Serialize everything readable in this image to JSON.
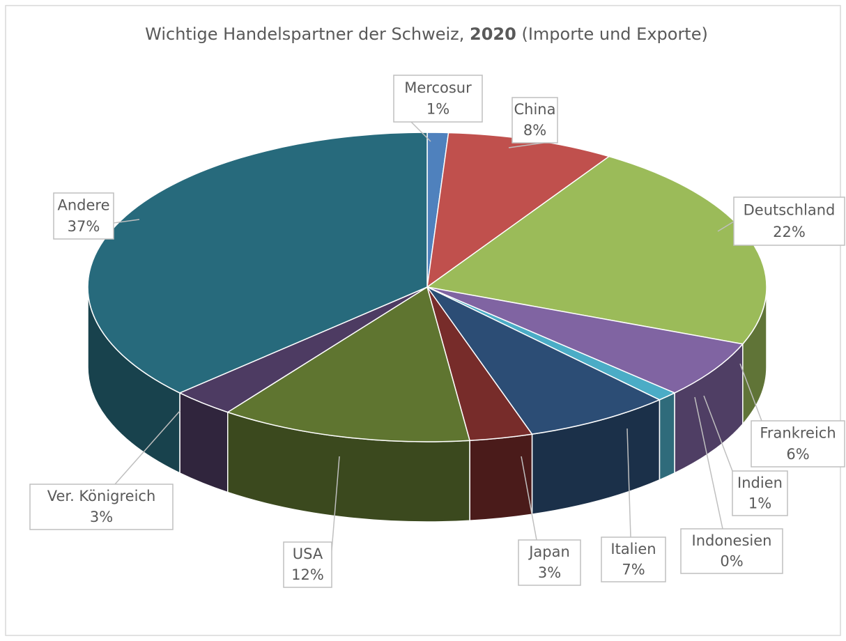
{
  "chart_data": {
    "type": "pie3d",
    "title": [
      "Wichtige Handelspartner der Schweiz, ",
      "2020",
      " (Importe und Exporte)"
    ],
    "categories": [
      "Mercosur",
      "China",
      "Deutschland",
      "Frankreich",
      "Indien",
      "Indonesien",
      "Italien",
      "Japan",
      "USA",
      "Ver. Königreich",
      "Andere"
    ],
    "values": [
      1,
      8,
      22,
      6,
      1,
      0,
      7,
      3,
      12,
      3,
      37
    ],
    "value_labels": [
      "1%",
      "8%",
      "22%",
      "6%",
      "1%",
      "0%",
      "7%",
      "3%",
      "12%",
      "3%",
      "37%"
    ],
    "colors": [
      "#4f81bd",
      "#c0504d",
      "#9bbb59",
      "#8064a2",
      "#4bacc6",
      "#f79646",
      "#2c4d75",
      "#772c2a",
      "#5f7530",
      "#4d3b62",
      "#276a7c"
    ]
  }
}
